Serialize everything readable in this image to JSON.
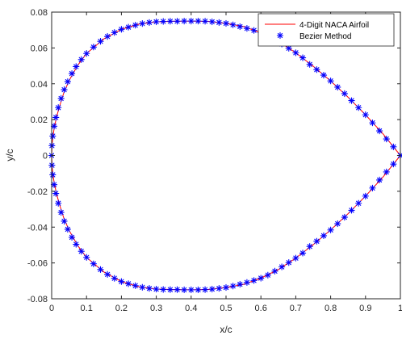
{
  "chart_data": {
    "type": "line",
    "title": "",
    "xlabel": "x/c",
    "ylabel": "y/c",
    "xlim": [
      0,
      1
    ],
    "ylim": [
      -0.08,
      0.08
    ],
    "grid": false,
    "legend_position": "top-right",
    "x_ticks": [
      "0",
      "0.1",
      "0.2",
      "0.3",
      "0.4",
      "0.5",
      "0.6",
      "0.7",
      "0.8",
      "0.9",
      "1"
    ],
    "y_ticks": [
      "-0.08",
      "-0.06",
      "-0.04",
      "-0.02",
      "0",
      "0.02",
      "0.04",
      "0.06",
      "0.08"
    ],
    "series": [
      {
        "name": "4-Digit NACA Airfoil",
        "style": "line",
        "color": "#ff0000",
        "x": [
          1.0,
          0.95,
          0.9,
          0.85,
          0.8,
          0.75,
          0.7,
          0.65,
          0.6,
          0.55,
          0.5,
          0.45,
          0.4,
          0.35,
          0.3,
          0.25,
          0.2,
          0.15,
          0.1,
          0.075,
          0.05,
          0.035,
          0.025,
          0.015,
          0.008,
          0.004,
          0.0015,
          0.0,
          0.0015,
          0.004,
          0.008,
          0.015,
          0.025,
          0.035,
          0.05,
          0.075,
          0.1,
          0.15,
          0.2,
          0.25,
          0.3,
          0.35,
          0.4,
          0.45,
          0.5,
          0.55,
          0.6,
          0.65,
          0.7,
          0.75,
          0.8,
          0.85,
          0.9,
          0.95,
          1.0
        ],
        "y": [
          0.0,
          0.0121,
          0.0227,
          0.0325,
          0.0416,
          0.0498,
          0.0573,
          0.0637,
          0.0685,
          0.072,
          0.0737,
          0.0748,
          0.075,
          0.0749,
          0.0746,
          0.0733,
          0.0704,
          0.0651,
          0.0569,
          0.0504,
          0.0418,
          0.0351,
          0.0289,
          0.0222,
          0.0161,
          0.0111,
          0.0067,
          0.0,
          -0.0067,
          -0.0111,
          -0.0161,
          -0.0222,
          -0.0289,
          -0.0351,
          -0.0418,
          -0.0504,
          -0.0569,
          -0.0651,
          -0.0704,
          -0.0733,
          -0.0746,
          -0.0749,
          -0.075,
          -0.0748,
          -0.0737,
          -0.072,
          -0.0685,
          -0.0637,
          -0.0573,
          -0.0498,
          -0.0416,
          -0.0325,
          -0.0227,
          -0.0121,
          0.0
        ]
      },
      {
        "name": "Bezier Method",
        "style": "marker",
        "marker": "*",
        "color": "#0000ff",
        "x": [
          1.0,
          0.98,
          0.96,
          0.94,
          0.92,
          0.9,
          0.88,
          0.86,
          0.84,
          0.82,
          0.8,
          0.78,
          0.76,
          0.74,
          0.72,
          0.7,
          0.68,
          0.66,
          0.64,
          0.62,
          0.6,
          0.58,
          0.56,
          0.54,
          0.52,
          0.5,
          0.48,
          0.46,
          0.44,
          0.42,
          0.4,
          0.38,
          0.36,
          0.34,
          0.32,
          0.3,
          0.28,
          0.26,
          0.24,
          0.22,
          0.2,
          0.18,
          0.16,
          0.14,
          0.12,
          0.1,
          0.085,
          0.07,
          0.058,
          0.046,
          0.036,
          0.027,
          0.019,
          0.012,
          0.007,
          0.003,
          0.0008,
          0.0,
          0.0008,
          0.003,
          0.007,
          0.012,
          0.019,
          0.027,
          0.036,
          0.046,
          0.058,
          0.07,
          0.085,
          0.1,
          0.12,
          0.14,
          0.16,
          0.18,
          0.2,
          0.22,
          0.24,
          0.26,
          0.28,
          0.3,
          0.32,
          0.34,
          0.36,
          0.38,
          0.4,
          0.42,
          0.44,
          0.46,
          0.48,
          0.5,
          0.52,
          0.54,
          0.56,
          0.58,
          0.6,
          0.62,
          0.64,
          0.66,
          0.68,
          0.7,
          0.72,
          0.74,
          0.76,
          0.78,
          0.8,
          0.82,
          0.84,
          0.86,
          0.88,
          0.9,
          0.92,
          0.94,
          0.96,
          0.98,
          1.0
        ],
        "y": [
          0.0,
          0.0048,
          0.0092,
          0.0137,
          0.0182,
          0.0227,
          0.0267,
          0.0306,
          0.0345,
          0.0381,
          0.0416,
          0.0448,
          0.0479,
          0.0508,
          0.0545,
          0.0573,
          0.0598,
          0.0622,
          0.0646,
          0.0668,
          0.0685,
          0.0698,
          0.0709,
          0.0719,
          0.0729,
          0.0737,
          0.0742,
          0.0746,
          0.0749,
          0.075,
          0.075,
          0.075,
          0.0749,
          0.0749,
          0.0748,
          0.0746,
          0.0742,
          0.0736,
          0.0727,
          0.0716,
          0.0704,
          0.0686,
          0.0664,
          0.0637,
          0.0605,
          0.0569,
          0.0535,
          0.0496,
          0.0457,
          0.0412,
          0.0367,
          0.0318,
          0.0267,
          0.0212,
          0.0163,
          0.0108,
          0.0055,
          0.0,
          -0.0055,
          -0.0108,
          -0.0163,
          -0.0212,
          -0.0267,
          -0.0318,
          -0.0367,
          -0.0412,
          -0.0457,
          -0.0496,
          -0.0535,
          -0.0569,
          -0.0605,
          -0.0637,
          -0.0664,
          -0.0686,
          -0.0704,
          -0.0716,
          -0.0727,
          -0.0736,
          -0.0742,
          -0.0746,
          -0.0748,
          -0.0749,
          -0.0749,
          -0.075,
          -0.075,
          -0.075,
          -0.0749,
          -0.0746,
          -0.0742,
          -0.0737,
          -0.0729,
          -0.0719,
          -0.0709,
          -0.0698,
          -0.0685,
          -0.0668,
          -0.0646,
          -0.0622,
          -0.0598,
          -0.0573,
          -0.0545,
          -0.0508,
          -0.0479,
          -0.0448,
          -0.0416,
          -0.0381,
          -0.0345,
          -0.0306,
          -0.0267,
          -0.0227,
          -0.0182,
          -0.0137,
          -0.0092,
          -0.0048,
          0.0
        ]
      }
    ]
  }
}
